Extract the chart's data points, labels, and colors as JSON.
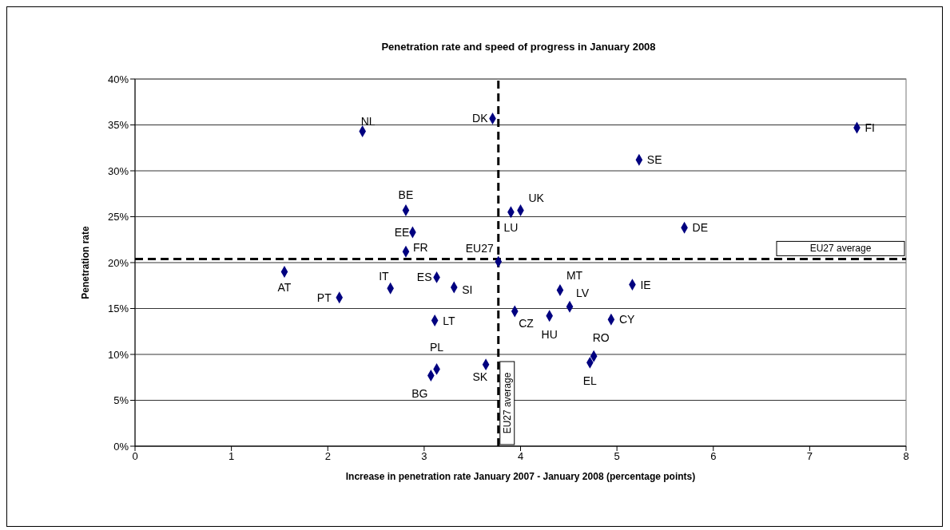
{
  "chart_data": {
    "type": "scatter",
    "title": "Penetration rate and speed of progress in January 2008",
    "xlabel": "Increase in penetration rate January 2007 - January 2008 (percentage points)",
    "ylabel": "Penetration rate",
    "x": [
      2.36,
      3.71,
      2.81,
      2.88,
      2.81,
      3.77,
      1.55,
      2.12,
      2.65,
      3.13,
      3.31,
      3.11,
      3.13,
      3.07,
      3.64,
      3.9,
      4.0,
      3.94,
      4.3,
      4.41,
      4.51,
      5.16,
      4.94,
      4.76,
      4.72,
      5.23,
      5.7,
      7.49
    ],
    "series": [
      {
        "color": "#000080",
        "values": [
          34.3,
          35.7,
          25.7,
          23.3,
          21.2,
          20.1,
          19.0,
          16.2,
          17.2,
          18.4,
          17.3,
          13.7,
          8.4,
          7.7,
          8.9,
          25.5,
          25.7,
          14.7,
          14.2,
          17.0,
          15.2,
          17.6,
          13.8,
          9.8,
          9.1,
          31.2,
          23.8,
          34.7
        ]
      }
    ],
    "annotations": [
      {
        "text": "NL",
        "x": 2.36,
        "y": 34.3
      },
      {
        "text": "DK",
        "x": 3.71,
        "y": 35.7
      },
      {
        "text": "BE",
        "x": 2.81,
        "y": 25.7
      },
      {
        "text": "EE",
        "x": 2.88,
        "y": 23.3
      },
      {
        "text": "FR",
        "x": 2.81,
        "y": 21.2
      },
      {
        "text": "EU27",
        "x": 3.77,
        "y": 20.1
      },
      {
        "text": "AT",
        "x": 1.55,
        "y": 19.0
      },
      {
        "text": "PT",
        "x": 2.12,
        "y": 16.2
      },
      {
        "text": "IT",
        "x": 2.65,
        "y": 17.2
      },
      {
        "text": "ES",
        "x": 3.13,
        "y": 18.4
      },
      {
        "text": "SI",
        "x": 3.31,
        "y": 17.3
      },
      {
        "text": "LT",
        "x": 3.11,
        "y": 13.7
      },
      {
        "text": "PL",
        "x": 3.13,
        "y": 8.4
      },
      {
        "text": "BG",
        "x": 3.07,
        "y": 7.7
      },
      {
        "text": "SK",
        "x": 3.64,
        "y": 8.9
      },
      {
        "text": "LU",
        "x": 3.9,
        "y": 25.5
      },
      {
        "text": "UK",
        "x": 4.0,
        "y": 25.7
      },
      {
        "text": "CZ",
        "x": 3.94,
        "y": 14.7
      },
      {
        "text": "HU",
        "x": 4.3,
        "y": 14.2
      },
      {
        "text": "MT",
        "x": 4.41,
        "y": 17.0
      },
      {
        "text": "LV",
        "x": 4.51,
        "y": 15.2
      },
      {
        "text": "IE",
        "x": 5.16,
        "y": 17.6
      },
      {
        "text": "CY",
        "x": 4.94,
        "y": 13.8
      },
      {
        "text": "RO",
        "x": 4.76,
        "y": 9.8
      },
      {
        "text": "EL",
        "x": 4.72,
        "y": 9.1
      },
      {
        "text": "SE",
        "x": 5.23,
        "y": 31.2
      },
      {
        "text": "DE",
        "x": 5.7,
        "y": 23.8
      },
      {
        "text": "FI",
        "x": 7.49,
        "y": 34.7
      }
    ],
    "ref_lines": [
      {
        "axis": "y",
        "value": 20.4,
        "label": "EU27 average",
        "line_style": "dashed",
        "color": "#000000"
      },
      {
        "axis": "x",
        "value": 3.77,
        "label": "EU27 average",
        "line_style": "dashed",
        "color": "#000000"
      }
    ],
    "xlim": [
      0,
      8
    ],
    "xticks": [
      0,
      1,
      2,
      3,
      4,
      5,
      6,
      7,
      8
    ],
    "ylim": [
      0,
      40
    ],
    "yticks": [
      {
        "value": 0,
        "label": "0%"
      },
      {
        "value": 5,
        "label": "5%"
      },
      {
        "value": 10,
        "label": "10%"
      },
      {
        "value": 15,
        "label": "15%"
      },
      {
        "value": 20,
        "label": "20%"
      },
      {
        "value": 25,
        "label": "25%"
      },
      {
        "value": 30,
        "label": "30%"
      },
      {
        "value": 35,
        "label": "35%"
      },
      {
        "value": 40,
        "label": "40%"
      }
    ],
    "grid": "y",
    "legend": false,
    "marker": "diamond"
  }
}
